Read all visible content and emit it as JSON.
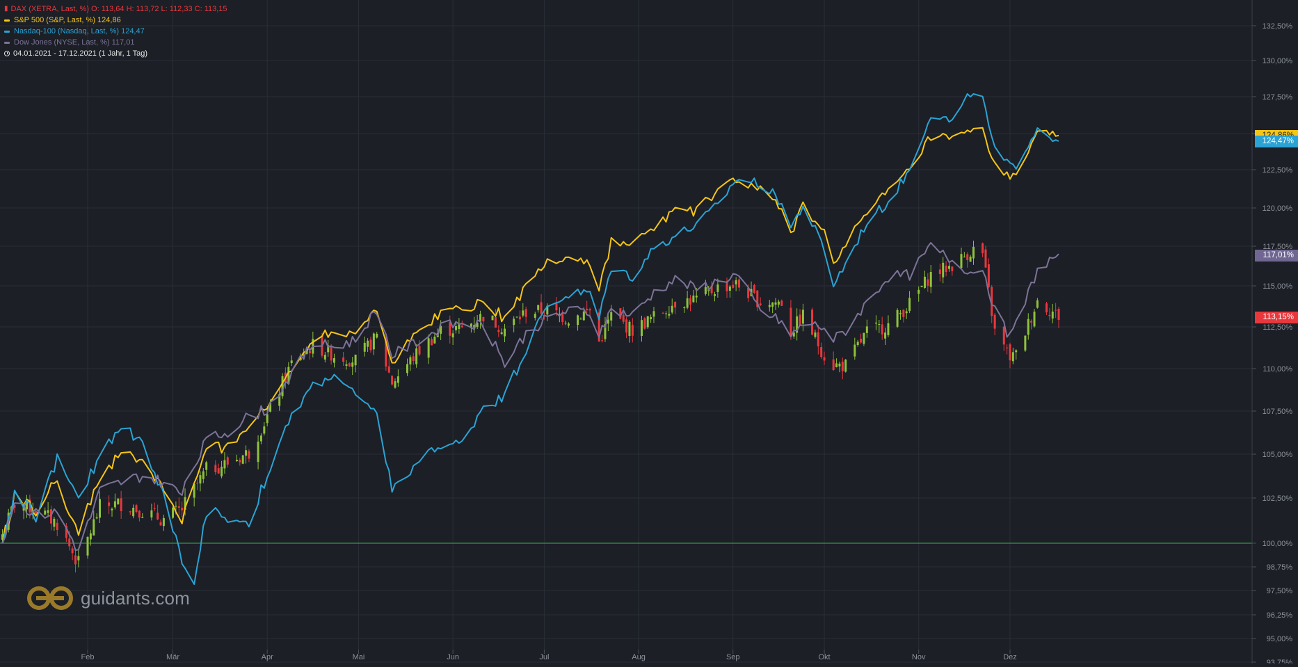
{
  "legend": {
    "dax": "DAX (XETRA, Last, %)  O: 113,64  H: 113,72  L: 112,33  C: 113,15",
    "spx": "S&P 500 (S&P, Last, %)  124,86",
    "ndx": "Nasdaq-100 (Nasdaq, Last, %)  124,47",
    "dji": "Dow Jones (NYSE, Last, %)  117,01",
    "range": "04.01.2021 - 17.12.2021   (1 Jahr, 1 Tag)"
  },
  "badges": {
    "spx": "124,86%",
    "ndx": "124,47%",
    "dji": "117,01%",
    "dax": "113,15%"
  },
  "watermark": {
    "text": "guidants.com"
  },
  "colors": {
    "background": "#1c1f26",
    "grid": "#2a2e36",
    "dax_up": "#8fc23a",
    "dax_down": "#e8383d",
    "spx": "#f5c518",
    "ndx": "#2ba3d4",
    "dji": "#7c7398",
    "baseline": "#3ab54a",
    "axis_text": "#8d929a"
  },
  "chart_data": {
    "type": "line",
    "title": "",
    "xlabel": "",
    "ylabel": "",
    "x_range": [
      "2021-01-04",
      "2021-12-17"
    ],
    "x_ticks": [
      {
        "label": "Feb",
        "date": "2021-02-01"
      },
      {
        "label": "Mär",
        "date": "2021-03-01"
      },
      {
        "label": "Apr",
        "date": "2021-04-01"
      },
      {
        "label": "Mai",
        "date": "2021-05-01"
      },
      {
        "label": "Jun",
        "date": "2021-06-01"
      },
      {
        "label": "Jul",
        "date": "2021-07-01"
      },
      {
        "label": "Aug",
        "date": "2021-08-01"
      },
      {
        "label": "Sep",
        "date": "2021-09-01"
      },
      {
        "label": "Okt",
        "date": "2021-10-01"
      },
      {
        "label": "Nov",
        "date": "2021-11-01"
      },
      {
        "label": "Dez",
        "date": "2021-12-01"
      }
    ],
    "y_ticks": [
      {
        "label": "132,50%",
        "value": 132.5
      },
      {
        "label": "130,00%",
        "value": 130
      },
      {
        "label": "127,50%",
        "value": 127.5
      },
      {
        "label": "125,00%",
        "value": 125
      },
      {
        "label": "122,50%",
        "value": 122.5
      },
      {
        "label": "120,00%",
        "value": 120
      },
      {
        "label": "117,50%",
        "value": 117.5
      },
      {
        "label": "115,00%",
        "value": 115
      },
      {
        "label": "112,50%",
        "value": 112.5
      },
      {
        "label": "110,00%",
        "value": 110
      },
      {
        "label": "107,50%",
        "value": 107.5
      },
      {
        "label": "105,00%",
        "value": 105
      },
      {
        "label": "102,50%",
        "value": 102.5
      },
      {
        "label": "100,00%",
        "value": 100
      },
      {
        "label": "98,75%",
        "value": 98.75
      },
      {
        "label": "97,50%",
        "value": 97.5
      },
      {
        "label": "96,25%",
        "value": 96.25
      },
      {
        "label": "95,00%",
        "value": 95
      },
      {
        "label": "93,75%",
        "value": 93.75
      }
    ],
    "baseline": 100,
    "series": [
      {
        "name": "S&P 500",
        "key": "spx",
        "color": "#f5c518",
        "points": [
          [
            "2021-01-04",
            100
          ],
          [
            "2021-01-08",
            102.6
          ],
          [
            "2021-01-15",
            101.8
          ],
          [
            "2021-01-22",
            103.5
          ],
          [
            "2021-01-29",
            100.5
          ],
          [
            "2021-02-05",
            103.7
          ],
          [
            "2021-02-12",
            105.0
          ],
          [
            "2021-02-19",
            104.6
          ],
          [
            "2021-02-26",
            103.0
          ],
          [
            "2021-03-04",
            101.2
          ],
          [
            "2021-03-12",
            105.2
          ],
          [
            "2021-03-19",
            105.5
          ],
          [
            "2021-03-26",
            106.7
          ],
          [
            "2021-04-01",
            107.7
          ],
          [
            "2021-04-09",
            110.0
          ],
          [
            "2021-04-16",
            111.9
          ],
          [
            "2021-04-23",
            112.2
          ],
          [
            "2021-04-30",
            112.3
          ],
          [
            "2021-05-07",
            113.7
          ],
          [
            "2021-05-12",
            110.3
          ],
          [
            "2021-05-21",
            112.3
          ],
          [
            "2021-05-28",
            113.4
          ],
          [
            "2021-06-04",
            113.6
          ],
          [
            "2021-06-11",
            114.1
          ],
          [
            "2021-06-18",
            113.0
          ],
          [
            "2021-06-25",
            115.0
          ],
          [
            "2021-07-02",
            116.5
          ],
          [
            "2021-07-09",
            116.9
          ],
          [
            "2021-07-16",
            116.4
          ],
          [
            "2021-07-19",
            114.8
          ],
          [
            "2021-07-23",
            117.8
          ],
          [
            "2021-07-30",
            117.6
          ],
          [
            "2021-08-06",
            118.7
          ],
          [
            "2021-08-13",
            119.9
          ],
          [
            "2021-08-20",
            119.8
          ],
          [
            "2021-08-27",
            121.1
          ],
          [
            "2021-09-02",
            121.9
          ],
          [
            "2021-09-10",
            121.2
          ],
          [
            "2021-09-17",
            119.8
          ],
          [
            "2021-09-20",
            118.4
          ],
          [
            "2021-09-24",
            120.1
          ],
          [
            "2021-10-01",
            118.4
          ],
          [
            "2021-10-04",
            116.6
          ],
          [
            "2021-10-08",
            117.6
          ],
          [
            "2021-10-15",
            119.6
          ],
          [
            "2021-10-22",
            121.1
          ],
          [
            "2021-10-29",
            122.4
          ],
          [
            "2021-11-05",
            124.8
          ],
          [
            "2021-11-12",
            124.6
          ],
          [
            "2021-11-19",
            125.1
          ],
          [
            "2021-11-22",
            125.3
          ],
          [
            "2021-11-26",
            122.7
          ],
          [
            "2021-12-01",
            122.0
          ],
          [
            "2021-12-03",
            122.5
          ],
          [
            "2021-12-10",
            124.9
          ],
          [
            "2021-12-17",
            124.86
          ]
        ]
      },
      {
        "name": "Nasdaq-100",
        "key": "ndx",
        "color": "#2ba3d4",
        "points": [
          [
            "2021-01-04",
            100
          ],
          [
            "2021-01-08",
            102.8
          ],
          [
            "2021-01-15",
            101.5
          ],
          [
            "2021-01-22",
            104.8
          ],
          [
            "2021-01-29",
            102.3
          ],
          [
            "2021-02-05",
            105.0
          ],
          [
            "2021-02-12",
            106.7
          ],
          [
            "2021-02-19",
            105.7
          ],
          [
            "2021-02-26",
            102.6
          ],
          [
            "2021-03-04",
            99.0
          ],
          [
            "2021-03-08",
            97.5
          ],
          [
            "2021-03-12",
            101.8
          ],
          [
            "2021-03-19",
            101.4
          ],
          [
            "2021-03-26",
            101.2
          ],
          [
            "2021-04-01",
            103.8
          ],
          [
            "2021-04-09",
            107.2
          ],
          [
            "2021-04-16",
            109.0
          ],
          [
            "2021-04-23",
            109.7
          ],
          [
            "2021-04-30",
            108.4
          ],
          [
            "2021-05-07",
            107.2
          ],
          [
            "2021-05-12",
            103.1
          ],
          [
            "2021-05-21",
            104.4
          ],
          [
            "2021-05-28",
            105.6
          ],
          [
            "2021-06-04",
            105.6
          ],
          [
            "2021-06-11",
            107.9
          ],
          [
            "2021-06-18",
            108.3
          ],
          [
            "2021-06-25",
            111.2
          ],
          [
            "2021-07-02",
            113.8
          ],
          [
            "2021-07-09",
            114.5
          ],
          [
            "2021-07-16",
            114.6
          ],
          [
            "2021-07-19",
            113.0
          ],
          [
            "2021-07-23",
            116.2
          ],
          [
            "2021-07-30",
            115.6
          ],
          [
            "2021-08-06",
            117.4
          ],
          [
            "2021-08-13",
            118.2
          ],
          [
            "2021-08-20",
            118.9
          ],
          [
            "2021-08-27",
            120.2
          ],
          [
            "2021-09-02",
            121.9
          ],
          [
            "2021-09-10",
            121.6
          ],
          [
            "2021-09-17",
            120.4
          ],
          [
            "2021-09-20",
            118.7
          ],
          [
            "2021-09-24",
            120.2
          ],
          [
            "2021-10-01",
            117.3
          ],
          [
            "2021-10-04",
            115.1
          ],
          [
            "2021-10-08",
            116.4
          ],
          [
            "2021-10-15",
            119.1
          ],
          [
            "2021-10-22",
            120.4
          ],
          [
            "2021-10-29",
            122.5
          ],
          [
            "2021-11-05",
            126.4
          ],
          [
            "2021-11-12",
            125.8
          ],
          [
            "2021-11-19",
            128.0
          ],
          [
            "2021-11-22",
            127.3
          ],
          [
            "2021-11-26",
            123.8
          ],
          [
            "2021-12-01",
            122.7
          ],
          [
            "2021-12-03",
            122.9
          ],
          [
            "2021-12-10",
            125.4
          ],
          [
            "2021-12-17",
            124.47
          ]
        ]
      },
      {
        "name": "Dow Jones",
        "key": "dji",
        "color": "#7c7398",
        "points": [
          [
            "2021-01-04",
            100
          ],
          [
            "2021-01-08",
            102.4
          ],
          [
            "2021-01-15",
            101.6
          ],
          [
            "2021-01-22",
            101.7
          ],
          [
            "2021-01-29",
            99.6
          ],
          [
            "2021-02-05",
            102.9
          ],
          [
            "2021-02-12",
            103.4
          ],
          [
            "2021-02-19",
            103.8
          ],
          [
            "2021-02-26",
            103.4
          ],
          [
            "2021-03-04",
            102.7
          ],
          [
            "2021-03-12",
            105.8
          ],
          [
            "2021-03-19",
            106.3
          ],
          [
            "2021-03-26",
            107.2
          ],
          [
            "2021-04-01",
            107.6
          ],
          [
            "2021-04-09",
            109.7
          ],
          [
            "2021-04-16",
            111.5
          ],
          [
            "2021-04-23",
            111.3
          ],
          [
            "2021-04-30",
            111.7
          ],
          [
            "2021-05-07",
            113.6
          ],
          [
            "2021-05-12",
            110.8
          ],
          [
            "2021-05-21",
            111.7
          ],
          [
            "2021-05-28",
            112.4
          ],
          [
            "2021-06-04",
            112.8
          ],
          [
            "2021-06-11",
            112.6
          ],
          [
            "2021-06-18",
            110.3
          ],
          [
            "2021-06-25",
            112.1
          ],
          [
            "2021-07-02",
            113.0
          ],
          [
            "2021-07-09",
            113.5
          ],
          [
            "2021-07-16",
            113.4
          ],
          [
            "2021-07-19",
            111.8
          ],
          [
            "2021-07-23",
            113.6
          ],
          [
            "2021-07-30",
            113.2
          ],
          [
            "2021-08-06",
            114.6
          ],
          [
            "2021-08-13",
            115.4
          ],
          [
            "2021-08-20",
            114.8
          ],
          [
            "2021-08-27",
            115.3
          ],
          [
            "2021-09-02",
            115.7
          ],
          [
            "2021-09-10",
            113.5
          ],
          [
            "2021-09-17",
            112.8
          ],
          [
            "2021-09-20",
            111.9
          ],
          [
            "2021-09-24",
            112.7
          ],
          [
            "2021-10-01",
            112.5
          ],
          [
            "2021-10-04",
            111.7
          ],
          [
            "2021-10-08",
            112.3
          ],
          [
            "2021-10-15",
            114.0
          ],
          [
            "2021-10-22",
            115.6
          ],
          [
            "2021-10-29",
            115.7
          ],
          [
            "2021-11-05",
            117.5
          ],
          [
            "2021-11-12",
            116.6
          ],
          [
            "2021-11-19",
            115.8
          ],
          [
            "2021-11-22",
            116.2
          ],
          [
            "2021-11-26",
            113.5
          ],
          [
            "2021-12-01",
            111.8
          ],
          [
            "2021-12-03",
            112.6
          ],
          [
            "2021-12-10",
            116.0
          ],
          [
            "2021-12-17",
            117.01
          ]
        ]
      }
    ],
    "candlestick": {
      "name": "DAX",
      "last": {
        "open": 113.64,
        "high": 113.72,
        "low": 112.33,
        "close": 113.15
      },
      "anchors": [
        [
          "2021-01-04",
          100.5
        ],
        [
          "2021-01-08",
          102.2
        ],
        [
          "2021-01-15",
          101.9
        ],
        [
          "2021-01-22",
          101.1
        ],
        [
          "2021-01-29",
          98.9
        ],
        [
          "2021-02-05",
          102.0
        ],
        [
          "2021-02-12",
          102.2
        ],
        [
          "2021-02-19",
          101.8
        ],
        [
          "2021-02-26",
          101.3
        ],
        [
          "2021-03-04",
          101.9
        ],
        [
          "2021-03-12",
          104.1
        ],
        [
          "2021-03-19",
          104.5
        ],
        [
          "2021-03-26",
          105.1
        ],
        [
          "2021-04-01",
          107.2
        ],
        [
          "2021-04-09",
          110.3
        ],
        [
          "2021-04-16",
          111.4
        ],
        [
          "2021-04-23",
          110.8
        ],
        [
          "2021-04-30",
          110.5
        ],
        [
          "2021-05-07",
          111.9
        ],
        [
          "2021-05-12",
          109.2
        ],
        [
          "2021-05-21",
          111.1
        ],
        [
          "2021-05-28",
          112.3
        ],
        [
          "2021-06-04",
          112.4
        ],
        [
          "2021-06-11",
          113.2
        ],
        [
          "2021-06-18",
          112.4
        ],
        [
          "2021-06-25",
          113.4
        ],
        [
          "2021-07-02",
          113.5
        ],
        [
          "2021-07-09",
          113.0
        ],
        [
          "2021-07-16",
          113.5
        ],
        [
          "2021-07-19",
          111.6
        ],
        [
          "2021-07-23",
          113.2
        ],
        [
          "2021-07-30",
          112.3
        ],
        [
          "2021-08-06",
          113.1
        ],
        [
          "2021-08-13",
          114.0
        ],
        [
          "2021-08-20",
          114.2
        ],
        [
          "2021-08-27",
          114.9
        ],
        [
          "2021-09-02",
          115.1
        ],
        [
          "2021-09-10",
          114.0
        ],
        [
          "2021-09-17",
          114.0
        ],
        [
          "2021-09-20",
          112.2
        ],
        [
          "2021-09-24",
          113.2
        ],
        [
          "2021-10-01",
          110.8
        ],
        [
          "2021-10-04",
          110.2
        ],
        [
          "2021-10-08",
          110.2
        ],
        [
          "2021-10-15",
          112.2
        ],
        [
          "2021-10-22",
          112.6
        ],
        [
          "2021-10-29",
          113.9
        ],
        [
          "2021-11-05",
          115.7
        ],
        [
          "2021-11-12",
          116.3
        ],
        [
          "2021-11-19",
          117.3
        ],
        [
          "2021-11-22",
          117.0
        ],
        [
          "2021-11-26",
          112.2
        ],
        [
          "2021-12-01",
          110.7
        ],
        [
          "2021-12-03",
          110.8
        ],
        [
          "2021-12-10",
          114.1
        ],
        [
          "2021-12-17",
          113.15
        ]
      ]
    }
  }
}
